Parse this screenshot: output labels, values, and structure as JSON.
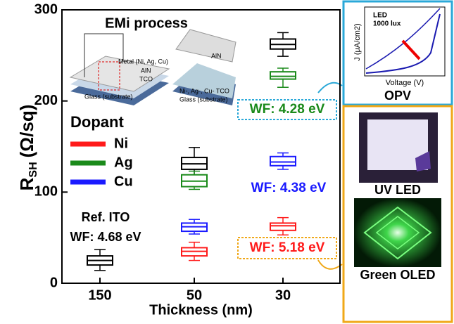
{
  "chart_data": {
    "type": "box",
    "title": "EMi process",
    "x_label": "Thickness (nm)",
    "y_label": "R",
    "y_label_sub": "SH",
    "y_label_unit": "(Ω/sq)",
    "categories": [
      "150",
      "50",
      "30"
    ],
    "ylim": [
      0,
      300
    ],
    "yticks": [
      0,
      100,
      200,
      300
    ],
    "legend_title": "Dopant",
    "series": [
      {
        "color": "#000000",
        "values": [
          {
            "min": 14,
            "q1": 20,
            "median": 25,
            "q3": 30,
            "max": 37
          },
          {
            "min": 118,
            "q1": 125,
            "median": 131,
            "q3": 138,
            "max": 149
          },
          {
            "min": 249,
            "q1": 257,
            "median": 262,
            "q3": 268,
            "max": 275
          }
        ]
      },
      {
        "name": "Ni",
        "color": "#ff1a1a",
        "values": [
          null,
          {
            "min": 25,
            "q1": 30,
            "median": 35,
            "q3": 39,
            "max": 45
          },
          {
            "min": 53,
            "q1": 58,
            "median": 63,
            "q3": 66,
            "max": 72
          }
        ]
      },
      {
        "name": "Ag",
        "color": "#1a8a1a",
        "values": [
          null,
          {
            "min": 103,
            "q1": 106,
            "median": 112,
            "q3": 119,
            "max": 123
          },
          {
            "min": 215,
            "q1": 224,
            "median": 227,
            "q3": 232,
            "max": 236
          }
        ]
      },
      {
        "name": "Cu",
        "color": "#1a1aff",
        "values": [
          null,
          {
            "min": 54,
            "q1": 57,
            "median": 62,
            "q3": 66,
            "max": 70
          },
          {
            "min": 125,
            "q1": 129,
            "median": 133,
            "q3": 139,
            "max": 143
          }
        ]
      }
    ],
    "annotations": [
      {
        "text": "Ref. ITO",
        "color": "#000000"
      },
      {
        "text": "WF: 4.68 eV",
        "color": "#000000"
      },
      {
        "text": "WF: 4.28 eV",
        "color": "#1a8a1a"
      },
      {
        "text": "WF: 4.38 eV",
        "color": "#1a1aff"
      },
      {
        "text": "WF: 5.18 eV",
        "color": "#ff1a1a"
      }
    ],
    "illustration_labels": [
      "Metal (Ni, Ag, Cu)",
      "AlN",
      "TCO",
      "Glass (substrate)",
      "AlN",
      "Ni-, Ag-, Cu- TCO",
      "Glass (substrate)"
    ],
    "panels": {
      "opv": {
        "title": "OPV",
        "inset_lines": [
          "LED",
          "1000 lux"
        ],
        "x_label": "Voltage (V)",
        "y_label": "J (μA/cm2)"
      },
      "uv_led": "UV LED",
      "green_oled": "Green OLED"
    }
  }
}
